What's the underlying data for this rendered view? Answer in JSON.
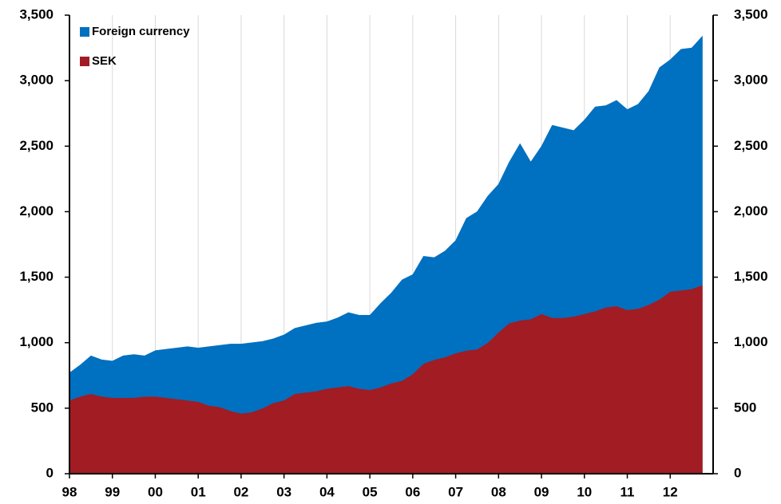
{
  "chart_data": {
    "type": "stacked_area",
    "categories": [
      "98",
      null,
      null,
      null,
      "99",
      null,
      null,
      null,
      "00",
      null,
      null,
      null,
      "01",
      null,
      null,
      null,
      "02",
      null,
      null,
      null,
      "03",
      null,
      null,
      null,
      "04",
      null,
      null,
      null,
      "05",
      null,
      null,
      null,
      "06",
      null,
      null,
      null,
      "07",
      null,
      null,
      null,
      "08",
      null,
      null,
      null,
      "09",
      null,
      null,
      null,
      "10",
      null,
      null,
      null,
      "11",
      null,
      null,
      null,
      "12",
      null,
      null,
      null
    ],
    "series": [
      {
        "name": "SEK",
        "color": "#a11c23",
        "values": [
          560,
          590,
          610,
          590,
          580,
          580,
          580,
          590,
          590,
          580,
          570,
          560,
          550,
          520,
          510,
          480,
          460,
          470,
          500,
          540,
          560,
          610,
          620,
          630,
          650,
          660,
          670,
          650,
          640,
          660,
          690,
          710,
          760,
          840,
          870,
          890,
          920,
          940,
          950,
          1000,
          1080,
          1150,
          1170,
          1180,
          1220,
          1190,
          1190,
          1200,
          1220,
          1240,
          1270,
          1280,
          1250,
          1260,
          1290,
          1330,
          1390,
          1400,
          1410,
          1440
        ]
      },
      {
        "name": "Foreign currency",
        "color": "#0070c0",
        "values": [
          210,
          240,
          290,
          280,
          280,
          320,
          330,
          310,
          350,
          370,
          390,
          410,
          410,
          450,
          470,
          510,
          530,
          530,
          510,
          490,
          500,
          500,
          510,
          520,
          510,
          530,
          560,
          560,
          570,
          640,
          690,
          770,
          760,
          820,
          780,
          810,
          860,
          1010,
          1050,
          1120,
          1130,
          1230,
          1350,
          1200,
          1280,
          1470,
          1450,
          1420,
          1480,
          1560,
          1540,
          1570,
          1530,
          1560,
          1630,
          1770,
          1770,
          1840,
          1840,
          1900
        ]
      }
    ],
    "ylim": [
      0,
      3500
    ],
    "yticks": [
      0,
      500,
      {
        "value": 1000,
        "label": "1,000"
      },
      {
        "value": 1500,
        "label": "1,500"
      },
      {
        "value": 2000,
        "label": "2,000"
      },
      {
        "value": 2500,
        "label": "2,500"
      },
      {
        "value": 3000,
        "label": "3,000"
      },
      {
        "value": 3500,
        "label": "3,500"
      }
    ],
    "y2lim": [
      0,
      3500
    ],
    "y2ticks": [
      0,
      500,
      {
        "value": 1000,
        "label": "1,000"
      },
      {
        "value": 1500,
        "label": "1,500"
      },
      {
        "value": 2000,
        "label": "2,000"
      },
      {
        "value": 2500,
        "label": "2,500"
      },
      {
        "value": 3000,
        "label": "3,000"
      },
      {
        "value": 3500,
        "label": "3,500"
      }
    ],
    "grid": true,
    "legend": "top-left"
  }
}
